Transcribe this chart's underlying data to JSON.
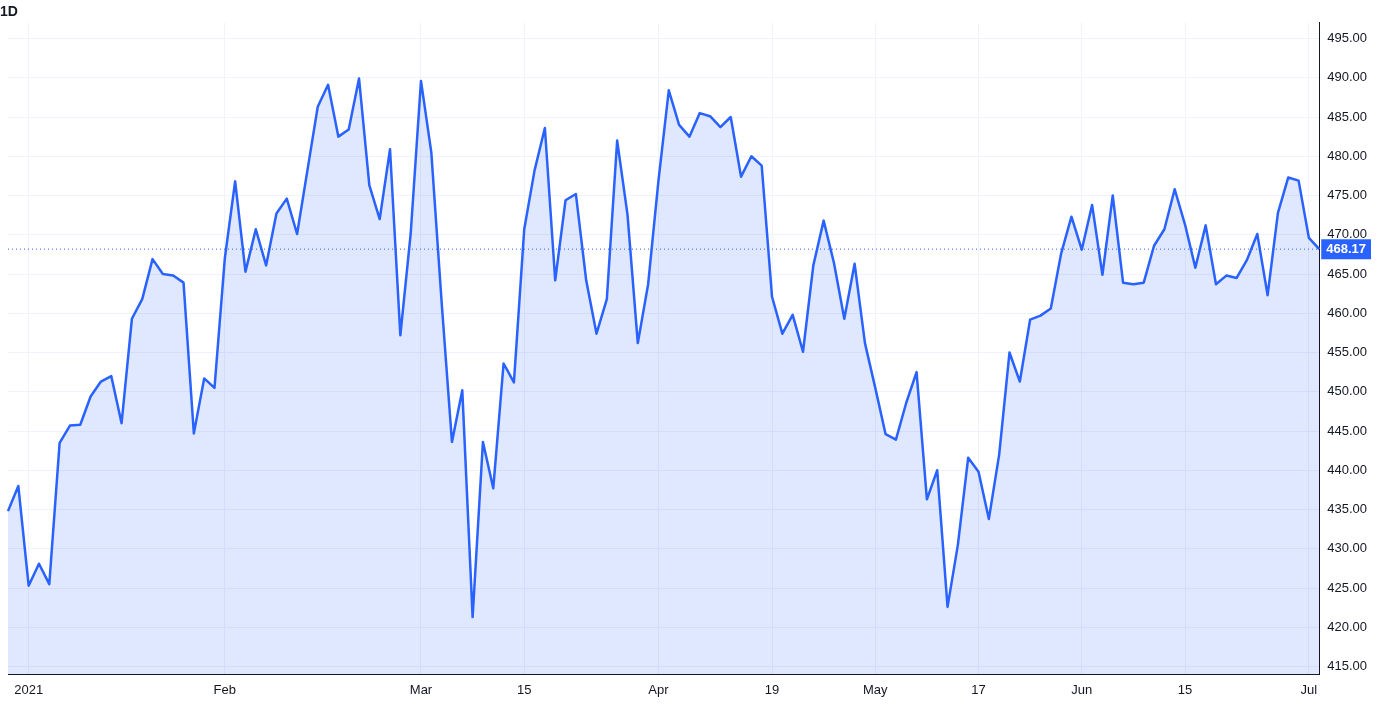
{
  "chart_data": {
    "type": "area",
    "title": "1D",
    "categories": [
      null,
      null,
      "2021",
      null,
      null,
      null,
      null,
      null,
      null,
      null,
      null,
      null,
      null,
      null,
      null,
      null,
      null,
      null,
      null,
      null,
      null,
      "Feb",
      null,
      null,
      null,
      null,
      null,
      null,
      null,
      null,
      null,
      null,
      null,
      null,
      null,
      null,
      null,
      null,
      null,
      null,
      "Mar",
      null,
      null,
      null,
      null,
      null,
      null,
      null,
      null,
      null,
      "15",
      null,
      null,
      null,
      null,
      null,
      null,
      null,
      null,
      null,
      null,
      null,
      null,
      "Apr",
      null,
      null,
      null,
      null,
      null,
      null,
      null,
      null,
      null,
      null,
      "19",
      null,
      null,
      null,
      null,
      null,
      null,
      null,
      null,
      null,
      "May",
      null,
      null,
      null,
      null,
      null,
      null,
      null,
      null,
      null,
      "17",
      null,
      null,
      null,
      null,
      null,
      null,
      null,
      null,
      null,
      "Jun",
      null,
      null,
      null,
      null,
      null,
      null,
      null,
      null,
      null,
      "15",
      null,
      null,
      null,
      null,
      null,
      null,
      null,
      null,
      null,
      null,
      null,
      "Jul",
      null
    ],
    "series": [
      {
        "color": "#2962ff",
        "values": [
          434.8,
          438.0,
          425.3,
          428.1,
          425.5,
          443.5,
          445.7,
          445.8,
          449.4,
          451.3,
          452.0,
          446.0,
          459.3,
          461.8,
          466.9,
          465.0,
          464.8,
          463.9,
          444.7,
          451.7,
          450.5,
          467.0,
          476.8,
          465.3,
          470.7,
          466.1,
          472.7,
          474.6,
          470.1,
          478.2,
          486.3,
          489.1,
          482.5,
          483.4,
          489.9,
          476.3,
          472.0,
          480.9,
          457.2,
          470.1,
          489.6,
          480.5,
          461.4,
          443.6,
          450.2,
          421.3,
          443.6,
          437.7,
          453.6,
          451.2,
          470.7,
          478.2,
          483.6,
          464.2,
          474.4,
          475.2,
          464.2,
          457.4,
          461.8,
          482.0,
          472.6,
          456.2,
          463.7,
          476.9,
          488.4,
          484.0,
          482.5,
          485.5,
          485.1,
          483.7,
          485.0,
          477.4,
          480.0,
          478.8,
          462.1,
          457.4,
          459.8,
          455.1,
          466.1,
          471.8,
          466.4,
          459.3,
          466.3,
          456.2,
          450.5,
          444.6,
          443.9,
          448.6,
          452.5,
          436.3,
          440.0,
          422.6,
          430.5,
          441.6,
          439.8,
          433.8,
          442.0,
          455.0,
          451.3,
          459.2,
          459.7,
          460.6,
          467.6,
          472.3,
          468.1,
          473.8,
          464.9,
          475.0,
          463.9,
          463.7,
          463.9,
          468.6,
          470.7,
          475.8,
          471.3,
          465.8,
          471.2,
          463.7,
          464.8,
          464.5,
          466.8,
          470.1,
          462.3,
          472.8,
          477.3,
          476.9,
          469.6,
          468.17
        ]
      }
    ],
    "ylim": [
      414,
      497
    ],
    "yticks": [
      {
        "value": 415,
        "label": "415.00"
      },
      {
        "value": 420,
        "label": "420.00"
      },
      {
        "value": 425,
        "label": "425.00"
      },
      {
        "value": 430,
        "label": "430.00"
      },
      {
        "value": 435,
        "label": "435.00"
      },
      {
        "value": 440,
        "label": "440.00"
      },
      {
        "value": 445,
        "label": "445.00"
      },
      {
        "value": 450,
        "label": "450.00"
      },
      {
        "value": 455,
        "label": "455.00"
      },
      {
        "value": 460,
        "label": "460.00"
      },
      {
        "value": 465,
        "label": "465.00"
      },
      {
        "value": 470,
        "label": "470.00"
      },
      {
        "value": 475,
        "label": "475.00"
      },
      {
        "value": 480,
        "label": "480.00"
      },
      {
        "value": 485,
        "label": "485.00"
      },
      {
        "value": 490,
        "label": "490.00"
      },
      {
        "value": 495,
        "label": "495.00"
      }
    ],
    "ref_lines": [
      {
        "axis": "y",
        "value": 468.17,
        "label": "468.17",
        "color": "#2962ff",
        "line_style": "dotted"
      }
    ],
    "grid": true,
    "legend": false,
    "marker": "none",
    "line_style": "solid"
  }
}
